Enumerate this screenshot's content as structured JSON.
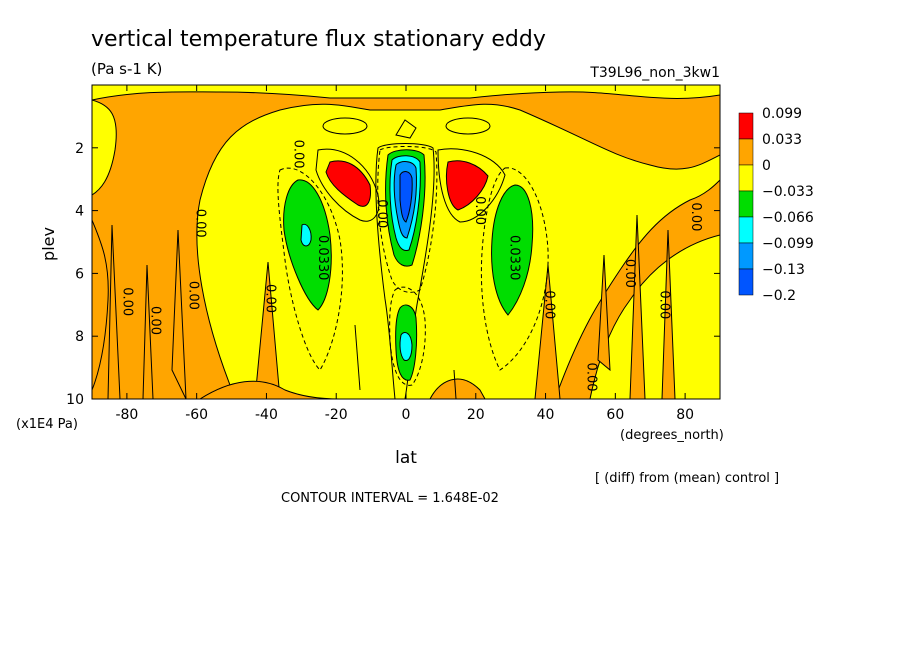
{
  "chart_data": {
    "type": "heatmap",
    "title": "vertical temperature flux stationary eddy",
    "units": "(Pa s-1 K)",
    "run_label": "T39L96_non_3kw1",
    "xlabel": "lat",
    "xunits": "(degrees_north)",
    "ylabel": "plev",
    "yunits": "(x1E4 Pa)",
    "xlim": [
      -90,
      90
    ],
    "ylim": [
      10,
      0
    ],
    "xticks": [
      -80,
      -60,
      -40,
      -20,
      0,
      20,
      40,
      60,
      80
    ],
    "xtick_labels": [
      "-80",
      "-60",
      "-40",
      "-20",
      "0",
      "20",
      "40",
      "60",
      "80"
    ],
    "yticks": [
      2,
      4,
      6,
      8,
      10
    ],
    "ytick_labels": [
      "2",
      "4",
      "6",
      "8",
      "10"
    ],
    "note": "[ (diff) from (mean) control ]",
    "contour_interval_text": "CONTOUR INTERVAL = 1.648E-02",
    "grid": false,
    "legend": {
      "placement": "right",
      "labels": [
        "0.099",
        "0.033",
        "0",
        "-0.033",
        "-0.066",
        "-0.099",
        "-0.13",
        "-0.2"
      ],
      "colors": [
        "#ff0000",
        "#ffa500",
        "#ffff00",
        "#00dd00",
        "#00ffff",
        "#0099ff",
        "#0055ff"
      ]
    },
    "colors": {
      "pos_high": "#ff0000",
      "pos_low": "#ffa500",
      "near_zero": "#ffff00",
      "neg_1": "#00dd00",
      "neg_2": "#00ffff",
      "neg_3": "#0099ff",
      "neg_4": "#0055ff"
    },
    "features": [
      {
        "kind": "positive_max",
        "lat": -17,
        "plev": 3.3,
        "level": "0.099"
      },
      {
        "kind": "positive_max",
        "lat": 17,
        "plev": 3.3,
        "level": "0.099"
      },
      {
        "kind": "negative_min",
        "lat": 0,
        "plev": 4.0,
        "level": "-0.2"
      },
      {
        "kind": "negative_min",
        "lat": 1,
        "plev": 8.3,
        "level": "-0.099"
      },
      {
        "kind": "negative_min",
        "lat": -28,
        "plev": 5.0,
        "level": "-0.099"
      },
      {
        "kind": "negative_min",
        "lat": 29,
        "plev": 5.2,
        "level": "-0.066"
      }
    ],
    "contour_labels": [
      {
        "text": "0.00",
        "lat": -32,
        "plev": 2.2
      },
      {
        "text": "0.00",
        "lat": -60,
        "plev": 4.4
      },
      {
        "text": "0.00",
        "lat": -81,
        "plev": 6.9
      },
      {
        "text": "0.00",
        "lat": -73,
        "plev": 7.5
      },
      {
        "text": "0.00",
        "lat": -62,
        "plev": 6.7
      },
      {
        "text": "0.00",
        "lat": -40,
        "plev": 6.8
      },
      {
        "text": "0.0330",
        "lat": -25,
        "plev": 5.5
      },
      {
        "text": "0.00",
        "lat": -8,
        "plev": 4.1
      },
      {
        "text": "0.00",
        "lat": 20,
        "plev": 4.0
      },
      {
        "text": "0.0330",
        "lat": 30,
        "plev": 5.5
      },
      {
        "text": "0.00",
        "lat": 40,
        "plev": 7.0
      },
      {
        "text": "0.00",
        "lat": 63,
        "plev": 6.0
      },
      {
        "text": "0.00",
        "lat": 73,
        "plev": 7.0
      },
      {
        "text": "0.00",
        "lat": 82,
        "plev": 4.2
      },
      {
        "text": "0.00",
        "lat": 52,
        "plev": 9.3
      }
    ]
  }
}
